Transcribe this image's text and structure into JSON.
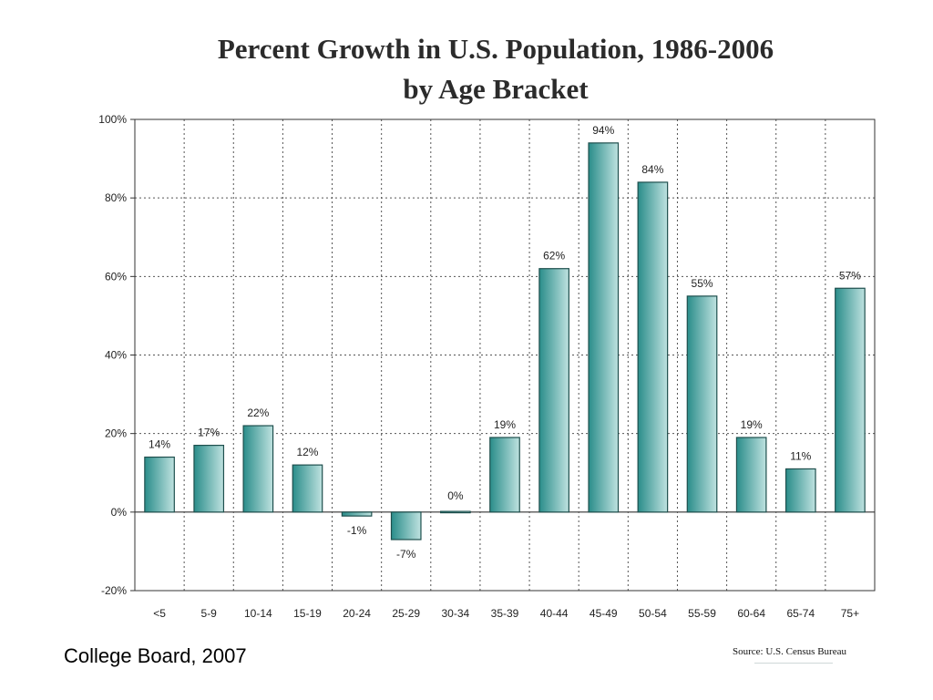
{
  "chart_data": {
    "type": "bar",
    "title": "Percent Growth in U.S. Population, 1986-2006",
    "subtitle": "by Age Bracket",
    "xlabel": "",
    "ylabel": "",
    "categories": [
      "<5",
      "5-9",
      "10-14",
      "15-19",
      "20-24",
      "25-29",
      "30-34",
      "35-39",
      "40-44",
      "45-49",
      "50-54",
      "55-59",
      "60-64",
      "65-74",
      "75+"
    ],
    "values": [
      14,
      17,
      22,
      12,
      -1,
      -7,
      0,
      19,
      62,
      94,
      84,
      55,
      19,
      11,
      57
    ],
    "value_labels": [
      "14%",
      "17%",
      "22%",
      "12%",
      "-1%",
      "-7%",
      "0%",
      "19%",
      "62%",
      "94%",
      "84%",
      "55%",
      "19%",
      "11%",
      "57%"
    ],
    "ylim": [
      -20,
      100
    ],
    "yticks": [
      -20,
      0,
      20,
      40,
      60,
      80,
      100
    ],
    "ytick_labels": [
      "-20%",
      "0%",
      "20%",
      "40%",
      "60%",
      "80%",
      "100%"
    ],
    "grid": true,
    "grid_style": "dotted",
    "bar_color": "#2a8d8a",
    "bar_color_light": "#bfe2e0",
    "legend": "none"
  },
  "footer": {
    "credit": "College Board, 2007",
    "source": "Source: U.S. Census Bureau"
  }
}
